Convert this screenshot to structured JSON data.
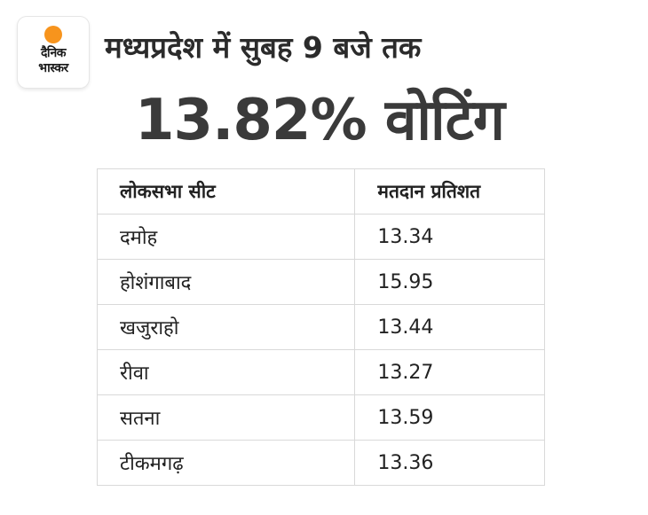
{
  "logo": {
    "line1": "दैनिक",
    "line2": "भास्कर",
    "sun_color": "#f7941d"
  },
  "headline": "मध्यप्रदेश में सुबह 9 बजे तक",
  "big_figure": "13.82% वोटिंग",
  "table": {
    "headers": [
      "लोकसभा सीट",
      "मतदान प्रतिशत"
    ],
    "rows": [
      {
        "seat": "दमोह",
        "percent": "13.34"
      },
      {
        "seat": "होशंगाबाद",
        "percent": "15.95"
      },
      {
        "seat": "खजुराहो",
        "percent": "13.44"
      },
      {
        "seat": "रीवा",
        "percent": "13.27"
      },
      {
        "seat": "सतना",
        "percent": "13.59"
      },
      {
        "seat": "टीकमगढ़",
        "percent": "13.36"
      }
    ]
  }
}
